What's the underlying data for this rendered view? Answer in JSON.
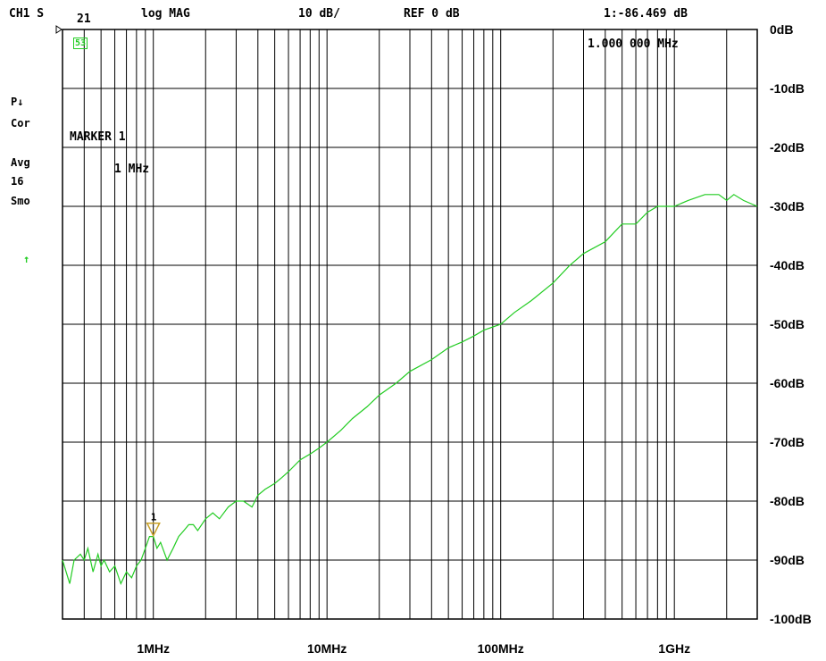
{
  "header": {
    "channel": "CH1 S",
    "param": "21",
    "format": "log MAG",
    "scale": "10 dB/",
    "ref": "REF 0 dB",
    "marker_readout": "1:-86.469 dB",
    "marker_freq": "1.000 000 MHz",
    "bw_indicator": "53"
  },
  "sidebar": {
    "p_flag": "P↓",
    "cor": "Cor",
    "avg": "Avg",
    "avg_count": "16",
    "smo": "Smo",
    "arrow": "↑"
  },
  "marker": {
    "title": "MARKER 1",
    "freq": "1 MHz",
    "number": "1"
  },
  "colors": {
    "trace": "#22cc22",
    "grid": "#000000",
    "marker": "#c8a028"
  },
  "chart_data": {
    "type": "line",
    "title": "",
    "xlabel": "",
    "ylabel": "",
    "x_scale": "log",
    "xlim_hz": [
      300000,
      3000000000
    ],
    "ylim": [
      -100,
      0
    ],
    "x_ticks": [
      {
        "value_hz": 1000000,
        "label": "1MHz"
      },
      {
        "value_hz": 10000000,
        "label": "10MHz"
      },
      {
        "value_hz": 100000000,
        "label": "100MHz"
      },
      {
        "value_hz": 1000000000,
        "label": "1GHz"
      }
    ],
    "y_ticks": [
      {
        "value": 0,
        "label": "0dB"
      },
      {
        "value": -10,
        "label": "-10dB"
      },
      {
        "value": -20,
        "label": "-20dB"
      },
      {
        "value": -30,
        "label": "-30dB"
      },
      {
        "value": -40,
        "label": "-40dB"
      },
      {
        "value": -50,
        "label": "-50dB"
      },
      {
        "value": -60,
        "label": "-60dB"
      },
      {
        "value": -70,
        "label": "-70dB"
      },
      {
        "value": -80,
        "label": "-80dB"
      },
      {
        "value": -90,
        "label": "-90dB"
      },
      {
        "value": -100,
        "label": "-100dB"
      }
    ],
    "grid": true,
    "series": [
      {
        "x_hz": [
          300000,
          330000,
          350000,
          380000,
          400000,
          420000,
          450000,
          480000,
          500000,
          520000,
          560000,
          600000,
          650000,
          700000,
          750000,
          800000,
          850000,
          900000,
          950000,
          1000000,
          1050000,
          1100000,
          1200000,
          1300000,
          1400000,
          1500000,
          1600000,
          1700000,
          1800000,
          2000000,
          2200000,
          2400000,
          2700000,
          3000000,
          3300000,
          3700000,
          4000000,
          4400000,
          5000000,
          5500000,
          6000000,
          7000000,
          8000000,
          9000000,
          10000000,
          12000000,
          14000000,
          17000000,
          20000000,
          25000000,
          30000000,
          40000000,
          50000000,
          60000000,
          70000000,
          80000000,
          100000000,
          120000000,
          150000000,
          200000000,
          250000000,
          300000000,
          400000000,
          500000000,
          600000000,
          700000000,
          800000000,
          900000000,
          1000000000,
          1200000000,
          1500000000,
          1800000000,
          2000000000,
          2200000000,
          2500000000,
          3000000000
        ],
        "y": [
          -90,
          -94,
          -90,
          -89,
          -90,
          -88,
          -92,
          -89,
          -91,
          -90,
          -92,
          -91,
          -94,
          -92,
          -93,
          -91,
          -90,
          -88,
          -86,
          -86,
          -88,
          -87,
          -90,
          -88,
          -86,
          -85,
          -84,
          -84,
          -85,
          -83,
          -82,
          -83,
          -81,
          -80,
          -80,
          -81,
          -79,
          -78,
          -77,
          -76,
          -75,
          -73,
          -72,
          -71,
          -70,
          -68,
          -66,
          -64,
          -62,
          -60,
          -58,
          -56,
          -54,
          -53,
          -52,
          -51,
          -50,
          -48,
          -46,
          -43,
          -40,
          -38,
          -36,
          -33,
          -33,
          -31,
          -30,
          -30,
          -30,
          -29,
          -28,
          -28,
          -29,
          -28,
          -29,
          -30
        ]
      }
    ],
    "marker": {
      "x_hz": 1000000,
      "y": -86.469
    }
  }
}
